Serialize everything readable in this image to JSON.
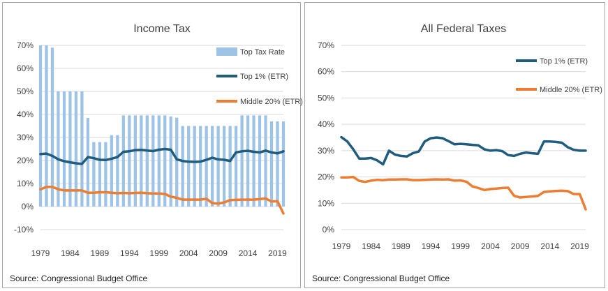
{
  "panels": [
    {
      "source": "Source: Congressional Budget Office"
    },
    {
      "source": "Source: Congressional Budget Office"
    }
  ],
  "chart_data": [
    {
      "type": "bar+line",
      "title": "Income Tax",
      "ylim": [
        -10,
        70
      ],
      "y_ticks": [
        "-10%",
        "0%",
        "10%",
        "20%",
        "30%",
        "40%",
        "50%",
        "60%",
        "70%"
      ],
      "y_tick_values": [
        -10,
        0,
        10,
        20,
        30,
        40,
        50,
        60,
        70
      ],
      "x_ticks": [
        "1979",
        "1984",
        "1989",
        "1994",
        "1999",
        "2004",
        "2009",
        "2014",
        "2019"
      ],
      "x": [
        1979,
        1980,
        1981,
        1982,
        1983,
        1984,
        1985,
        1986,
        1987,
        1988,
        1989,
        1990,
        1991,
        1992,
        1993,
        1994,
        1995,
        1996,
        1997,
        1998,
        1999,
        2000,
        2001,
        2002,
        2003,
        2004,
        2005,
        2006,
        2007,
        2008,
        2009,
        2010,
        2011,
        2012,
        2013,
        2014,
        2015,
        2016,
        2017,
        2018,
        2019,
        2020
      ],
      "legend_position": "top-right",
      "grid": true,
      "series": [
        {
          "name": "Top Tax Rate",
          "kind": "bar",
          "color": "#9dc3e6",
          "values": [
            70,
            70,
            69,
            50,
            50,
            50,
            50,
            50,
            38.5,
            28,
            28,
            28,
            31,
            31,
            39.6,
            39.6,
            39.6,
            39.6,
            39.6,
            39.6,
            39.6,
            39.6,
            39.1,
            38.6,
            35,
            35,
            35,
            35,
            35,
            35,
            35,
            35,
            35,
            35,
            39.6,
            39.6,
            39.6,
            39.6,
            39.6,
            37,
            37,
            37
          ]
        },
        {
          "name": "Top 1% (ETR)",
          "kind": "line",
          "color": "#1f5c7e",
          "values": [
            22.8,
            23,
            22,
            20.5,
            19.7,
            19.2,
            18.8,
            18.5,
            21.5,
            21,
            20.3,
            20.2,
            20.8,
            21.5,
            23.8,
            24,
            24.5,
            24.6,
            24.3,
            24.1,
            24.7,
            25,
            24.7,
            20.5,
            19.8,
            19.5,
            19.4,
            19.5,
            20.3,
            21.2,
            20.5,
            20.3,
            19.8,
            23.5,
            24,
            24.2,
            23.8,
            23.5,
            24.3,
            23.5,
            23.1,
            24
          ]
        },
        {
          "name": "Middle 20% (ETR)",
          "kind": "line",
          "color": "#ed7d31",
          "values": [
            7.5,
            8.5,
            8.5,
            7.5,
            7,
            7,
            7,
            7,
            6,
            6,
            6.2,
            6.2,
            6,
            5.8,
            5.9,
            5.8,
            5.9,
            6,
            5.8,
            5.7,
            5.7,
            5.5,
            4.3,
            3.8,
            3,
            3,
            3,
            3,
            3.4,
            1.5,
            1.3,
            1.8,
            2.8,
            2.9,
            3,
            3,
            3,
            3.2,
            3.5,
            2.2,
            2.3,
            -3
          ]
        }
      ]
    },
    {
      "type": "line",
      "title": "All Federal Taxes",
      "ylim": [
        0,
        70
      ],
      "y_ticks": [
        "0%",
        "10%",
        "20%",
        "30%",
        "40%",
        "50%",
        "60%",
        "70%"
      ],
      "y_tick_values": [
        0,
        10,
        20,
        30,
        40,
        50,
        60,
        70
      ],
      "x_ticks": [
        "1979",
        "1984",
        "1989",
        "1994",
        "1999",
        "2004",
        "2009",
        "2014",
        "2019"
      ],
      "x": [
        1979,
        1980,
        1981,
        1982,
        1983,
        1984,
        1985,
        1986,
        1987,
        1988,
        1989,
        1990,
        1991,
        1992,
        1993,
        1994,
        1995,
        1996,
        1997,
        1998,
        1999,
        2000,
        2001,
        2002,
        2003,
        2004,
        2005,
        2006,
        2007,
        2008,
        2009,
        2010,
        2011,
        2012,
        2013,
        2014,
        2015,
        2016,
        2017,
        2018,
        2019,
        2020
      ],
      "legend_position": "top-right",
      "grid": true,
      "series": [
        {
          "name": "Top 1% (ETR)",
          "color": "#1f5c7e",
          "values": [
            35.1,
            33.5,
            30.5,
            27,
            27,
            27.2,
            26.3,
            24.8,
            30,
            28.5,
            28,
            27.8,
            29,
            29.7,
            33.5,
            34.7,
            35,
            34.7,
            33.6,
            32.4,
            32.6,
            32.4,
            32.2,
            32,
            30.5,
            30,
            30.2,
            29.8,
            28.3,
            28,
            28.8,
            29.3,
            29,
            28.8,
            33.5,
            33.5,
            33.3,
            33,
            31.3,
            30.3,
            30,
            30
          ]
        },
        {
          "name": "Middle 20% (ETR)",
          "color": "#ed7d31",
          "values": [
            19.8,
            19.8,
            20,
            18.5,
            18.1,
            18.6,
            18.9,
            18.8,
            19,
            19,
            19.1,
            19.1,
            18.8,
            18.8,
            18.9,
            19,
            19.1,
            19,
            19.1,
            18.6,
            18.7,
            18.2,
            16.4,
            15.8,
            15,
            15.4,
            15.6,
            15.8,
            15.9,
            12.8,
            12.2,
            12.4,
            12.6,
            12.8,
            14.3,
            14.5,
            14.7,
            14.8,
            14.6,
            13.5,
            13.5,
            7.7
          ]
        }
      ]
    }
  ]
}
